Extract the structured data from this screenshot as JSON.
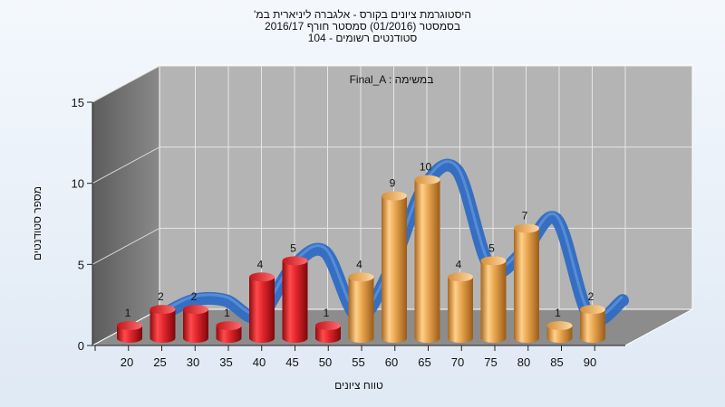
{
  "chart_data": {
    "type": "bar",
    "title_lines": [
      "היסטוגרמת ציונים בקורס - אלגברה ליניארית במ'",
      "בסמסטר  (01/2016)  סמסטר חורף 2016/17",
      "סטודנטים רשומים - 104"
    ],
    "annotation": "Final_A : במשימה",
    "xlabel": "טווח ציונים",
    "ylabel": "מספר סטודנטים",
    "ylim": [
      0,
      15
    ],
    "yticks": [
      0,
      5,
      10,
      15
    ],
    "categories": [
      "20",
      "25",
      "30",
      "35",
      "40",
      "45",
      "50",
      "55",
      "60",
      "65",
      "70",
      "75",
      "80",
      "85",
      "90"
    ],
    "values": [
      1,
      2,
      2,
      1,
      4,
      5,
      1,
      4,
      9,
      10,
      4,
      5,
      7,
      1,
      2
    ],
    "bar_colors_by_index": [
      "#e0252b",
      "#e0252b",
      "#e0252b",
      "#e0252b",
      "#e0252b",
      "#e0252b",
      "#e0252b",
      "#e7a44e",
      "#e7a44e",
      "#e7a44e",
      "#e7a44e",
      "#e7a44e",
      "#e7a44e",
      "#e7a44e",
      "#e7a44e"
    ],
    "trend_color": "#2f6cc2",
    "grid": true
  }
}
